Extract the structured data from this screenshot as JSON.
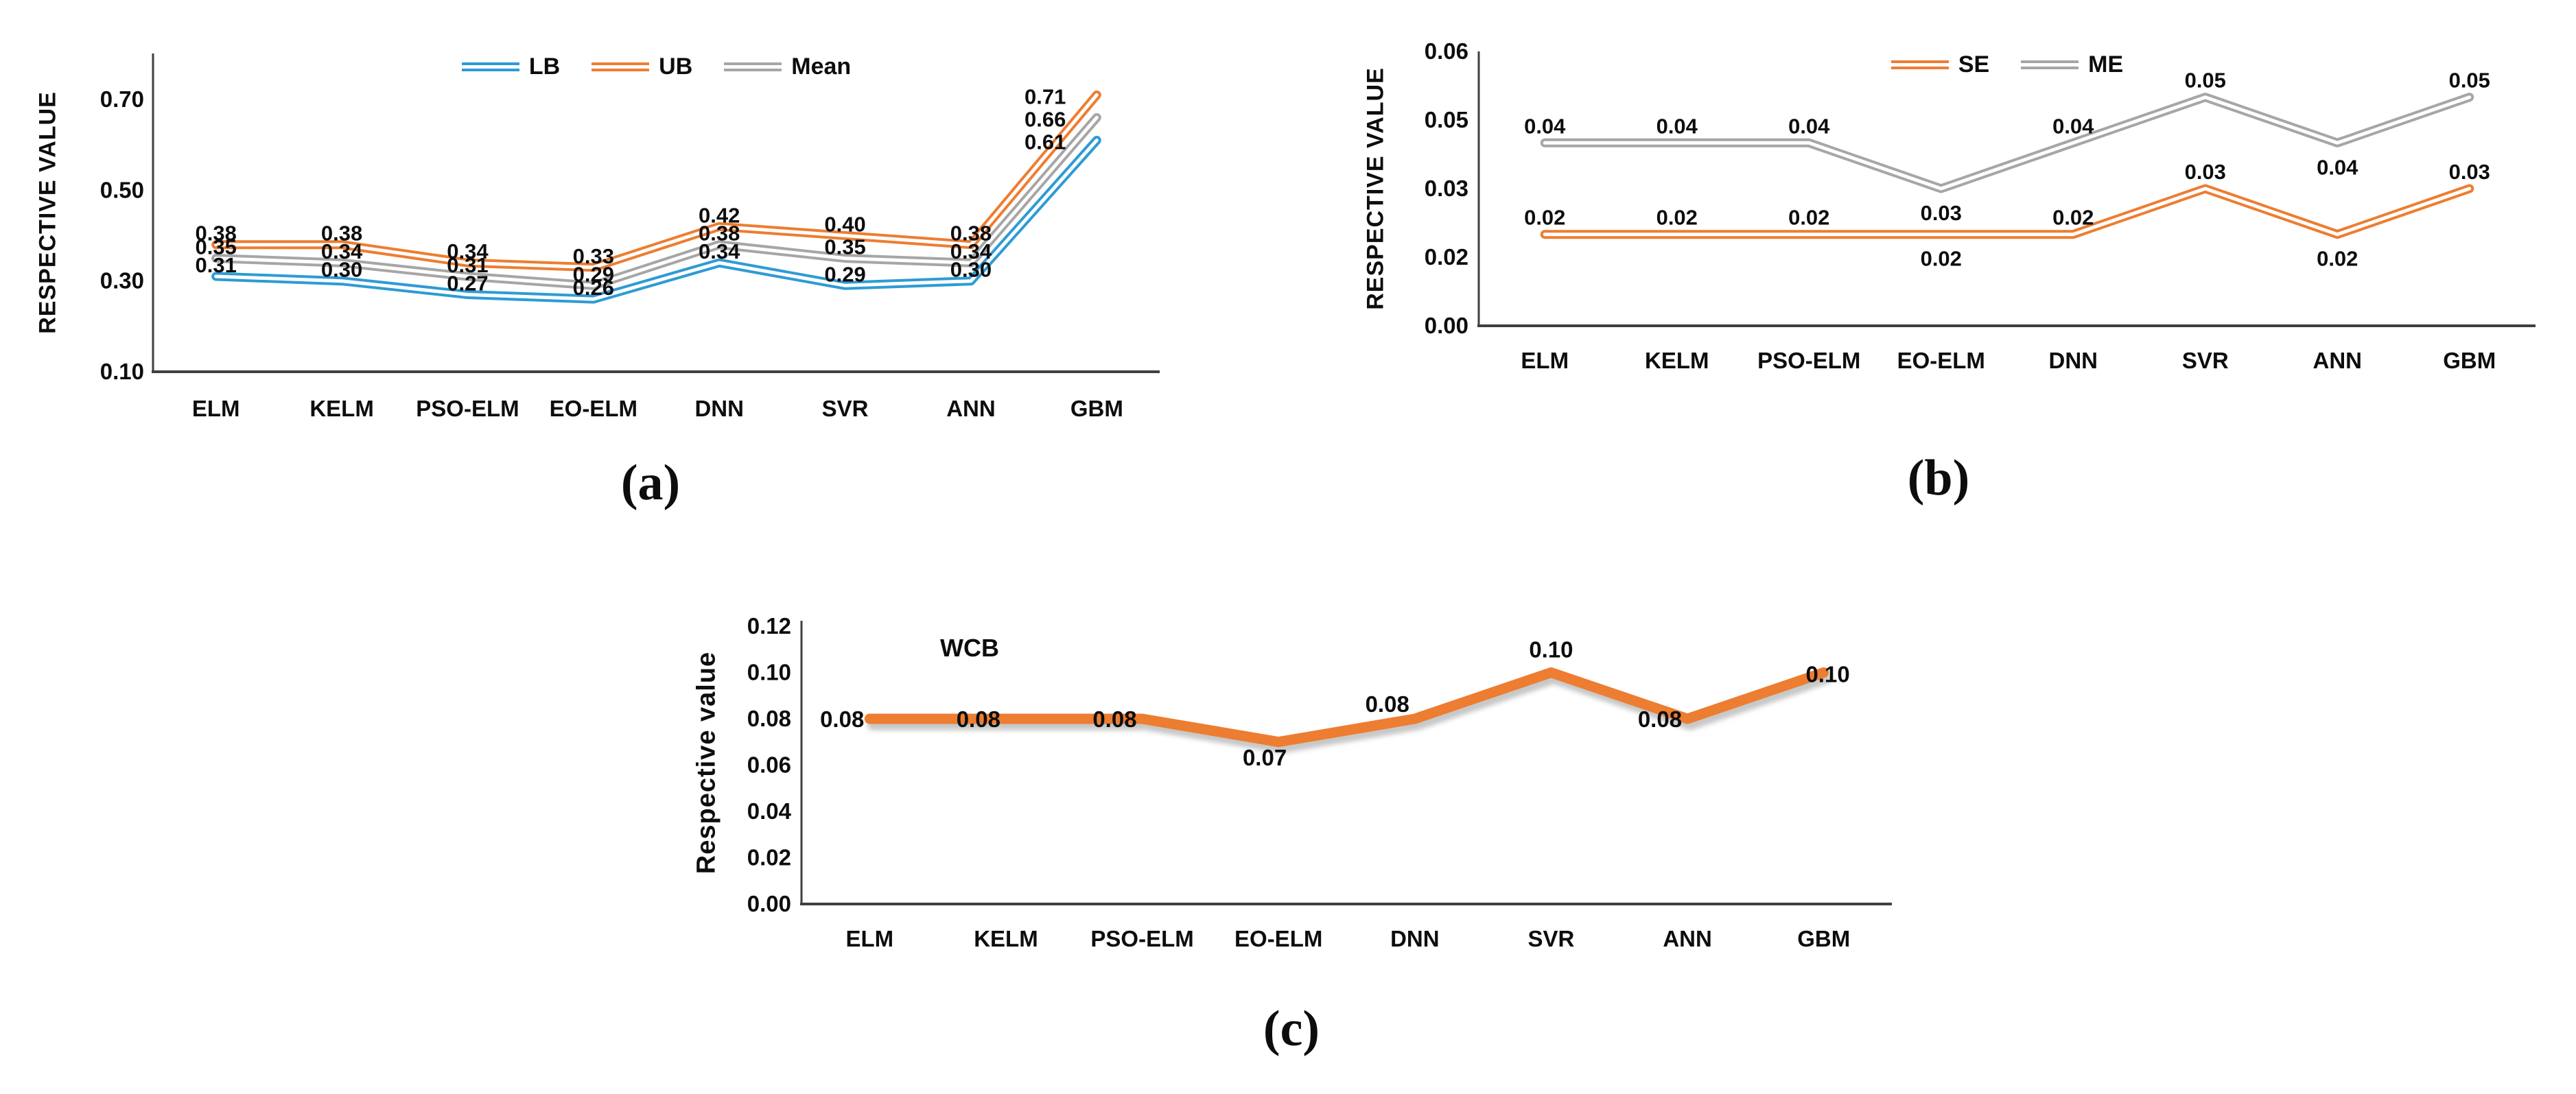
{
  "figure": {
    "captions": {
      "a": "(a)",
      "b": "(b)",
      "c": "(c)"
    }
  },
  "chart_data": [
    {
      "id": "a",
      "type": "line",
      "caption": "(a)",
      "title": "",
      "xlabel": "",
      "ylabel": "RESPECTIVE VALUE",
      "categories": [
        "ELM",
        "KELM",
        "PSO-ELM",
        "EO-ELM",
        "DNN",
        "SVR",
        "ANN",
        "GBM"
      ],
      "y_tick_labels": [
        "0.70",
        "0.50",
        "0.30",
        "0.10"
      ],
      "ylim": [
        0.1,
        0.8
      ],
      "grid": false,
      "legend_position": "top-center",
      "line_style": "double",
      "legend_order": [
        "LB",
        "UB",
        "Mean"
      ],
      "series": [
        {
          "name": "UB",
          "color": "#ED7D31",
          "values": [
            0.38,
            0.38,
            0.34,
            0.33,
            0.42,
            0.4,
            0.38,
            0.71
          ]
        },
        {
          "name": "Mean",
          "color": "#A6A6A6",
          "values": [
            0.35,
            0.34,
            0.31,
            0.29,
            0.38,
            0.35,
            0.34,
            0.66
          ]
        },
        {
          "name": "LB",
          "color": "#2E9BD5",
          "values": [
            0.31,
            0.3,
            0.27,
            0.26,
            0.34,
            0.29,
            0.3,
            0.61
          ]
        }
      ]
    },
    {
      "id": "b",
      "type": "line",
      "caption": "(b)",
      "title": "",
      "xlabel": "",
      "ylabel": "RESPECTIVE VALUE",
      "categories": [
        "ELM",
        "KELM",
        "PSO-ELM",
        "EO-ELM",
        "DNN",
        "SVR",
        "ANN",
        "GBM"
      ],
      "y_tick_labels": [
        "0.06",
        "0.05",
        "0.03",
        "0.02",
        "0.00"
      ],
      "ylim": [
        0.0,
        0.06
      ],
      "grid": false,
      "legend_position": "top-center",
      "line_style": "double",
      "legend_order": [
        "SE",
        "ME"
      ],
      "series": [
        {
          "name": "ME",
          "color": "#A6A6A6",
          "values": [
            0.04,
            0.04,
            0.04,
            0.03,
            0.04,
            0.05,
            0.04,
            0.05
          ]
        },
        {
          "name": "SE",
          "color": "#ED7D31",
          "values": [
            0.02,
            0.02,
            0.02,
            0.02,
            0.02,
            0.03,
            0.02,
            0.03
          ]
        }
      ]
    },
    {
      "id": "c",
      "type": "line",
      "caption": "(c)",
      "title": "",
      "xlabel": "",
      "ylabel": "Respective value",
      "legend_label": "WCB",
      "categories": [
        "ELM",
        "KELM",
        "PSO-ELM",
        "EO-ELM",
        "DNN",
        "SVR",
        "ANN",
        "GBM"
      ],
      "y_tick_labels": [
        "0.12",
        "0.10",
        "0.08",
        "0.06",
        "0.04",
        "0.02",
        "0.00"
      ],
      "ylim": [
        0.0,
        0.12
      ],
      "grid": false,
      "legend_position": "inside-top-left",
      "line_style": "thick-shadow",
      "series": [
        {
          "name": "WCB",
          "color": "#ED7D31",
          "values": [
            0.08,
            0.08,
            0.08,
            0.07,
            0.08,
            0.1,
            0.08,
            0.1
          ]
        }
      ]
    }
  ]
}
